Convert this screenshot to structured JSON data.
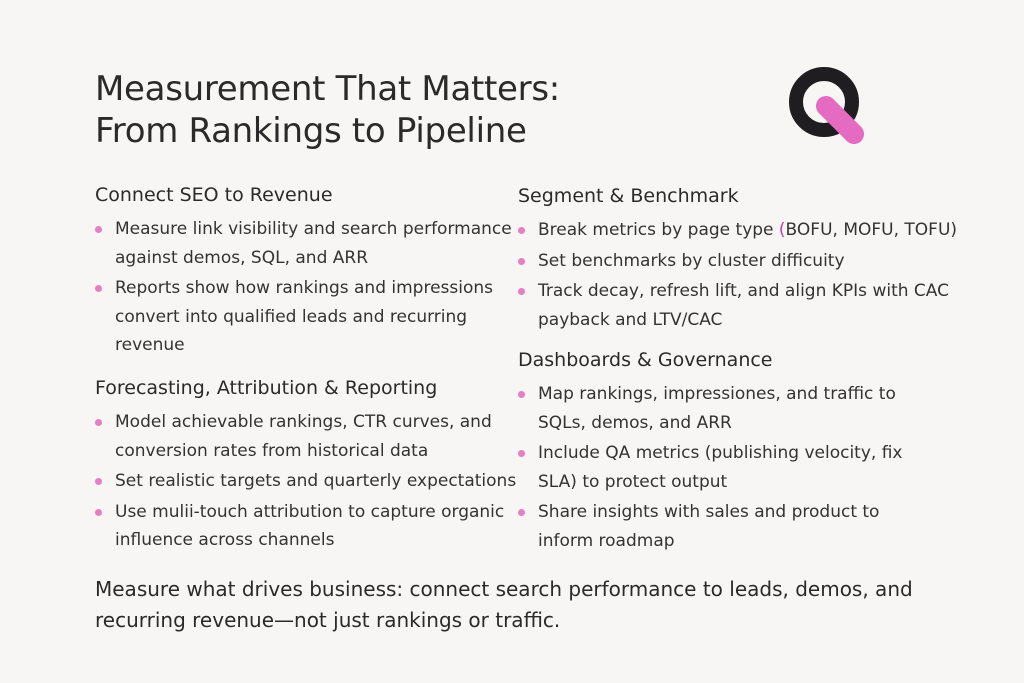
{
  "title": {
    "line1": "Measurement That Matters:",
    "line2": "From Rankings to Pipeline"
  },
  "logo": {
    "icon": "q-logo-icon",
    "colors": {
      "ring": "#1f1d1f",
      "bar": "#e46ac2"
    }
  },
  "colors": {
    "bullet": "#e47fc3",
    "accent": "#c2409f"
  },
  "sections": {
    "connect": {
      "heading": "Connect SEO to Revenue",
      "items": [
        "Measure link visibility and search performance against demos, SQL, and ARR",
        "Reports show how rankings and impressions convert into qualified leads and recurring revenue"
      ]
    },
    "forecast": {
      "heading": "Forecasting, Attribution & Reporting",
      "items": [
        "Model achievable rankings, CTR curves, and conversion rates from historical data",
        "Set realistic targets and quarterly expectations",
        "Use mulii-touch attribution to capture organic influence across channels"
      ]
    },
    "segment": {
      "heading": "Segment & Benchmark",
      "item0_prefix": "Break metrics by page type ",
      "item0_paren": "(",
      "item0_suffix": "BOFU, MOFU, TOFU)",
      "items": [
        "Set benchmarks by cluster difficuity",
        "Track decay, refresh lift, and align KPIs with CAC payback and LTV/CAC"
      ]
    },
    "dashboards": {
      "heading": "Dashboards & Governance",
      "items": [
        "Map rankings, impressiones, and traffic to SQLs, demos, and ARR",
        "Include QA metrics (publishing velocity, fix SLA) to protect output",
        "Share insights with sales and product to inform roadmap"
      ]
    }
  },
  "closing": "Measure what drives business: connect search performance to leads, demos, and recurring revenue—not just rankings or traffic."
}
